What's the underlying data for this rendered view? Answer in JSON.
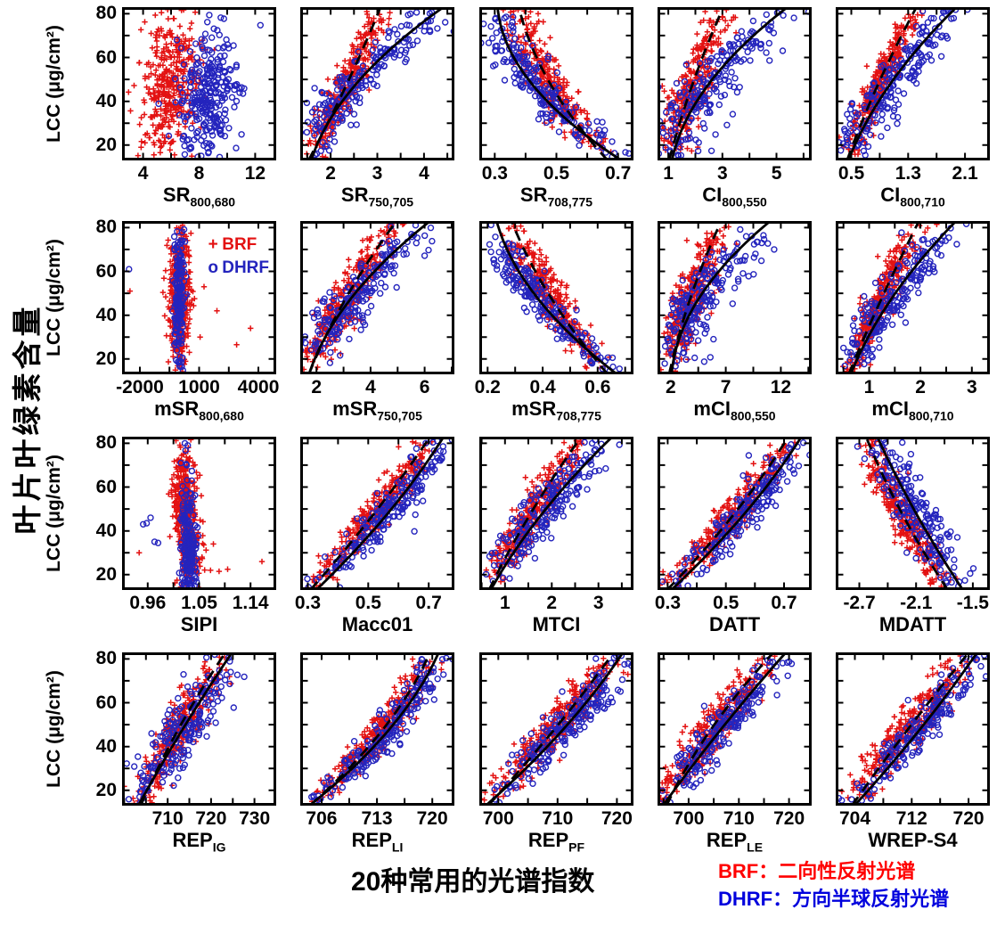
{
  "ylabel_cn": "叶片叶绿素含量",
  "caption": "20种常用的光谱指数",
  "legend_bottom": {
    "brf": "BRF：二向性反射光谱",
    "dhrf": "DHRF：方向半球反射光谱",
    "brf_color": "#ff0000",
    "dhrf_color": "#0000dd"
  },
  "series_legend": {
    "brf": {
      "marker": "+",
      "label": "BRF",
      "color": "#e31212"
    },
    "dhrf": {
      "marker": "o",
      "label": "DHRF",
      "color": "#2424bd"
    }
  },
  "chart_data": {
    "type": "scatter",
    "ylabel": "LCC (μg/cm²)",
    "ylim": [
      13,
      83
    ],
    "yticks": [
      20,
      40,
      60,
      80
    ],
    "marker_colors": {
      "brf": "#e31212",
      "dhrf": "#2424bd"
    },
    "fit_line_color": "#000000",
    "fit_styles": {
      "brf": "dashed",
      "dhrf": "solid"
    },
    "panels": [
      {
        "label_main": "SR",
        "label_sub": "800,680",
        "xlim": [
          2.5,
          13.5
        ],
        "xtick_values": [
          4,
          8,
          12
        ],
        "xtick_labels": [
          "4",
          "8",
          "12"
        ],
        "fit": false,
        "show_legend": false,
        "brf": {
          "ctrl": [
            5.2,
            5.9,
            6.1
          ],
          "jitter": 1.0,
          "n": 380
        },
        "dhrf": {
          "ctrl": [
            8.0,
            8.7,
            9.4
          ],
          "jitter": 1.1,
          "n": 280,
          "ydist": [
            40,
            17
          ]
        }
      },
      {
        "label_main": "SR",
        "label_sub": "750,705",
        "xlim": [
          1.35,
          4.65
        ],
        "xtick_values": [
          2,
          3,
          4
        ],
        "xtick_labels": [
          "2",
          "3",
          "4"
        ],
        "fit": true,
        "show_legend": false,
        "brf": {
          "ctrl": [
            1.55,
            2.35,
            3.05
          ],
          "jitter": 0.17,
          "n": 300
        },
        "dhrf": {
          "ctrl": [
            1.6,
            2.55,
            4.35
          ],
          "jitter": 0.28,
          "n": 210
        }
      },
      {
        "label_main": "SR",
        "label_sub": "708,775",
        "xlim": [
          0.25,
          0.75
        ],
        "xtick_values": [
          0.3,
          0.5,
          0.7
        ],
        "xtick_labels": [
          "0.3",
          "0.5",
          "0.7"
        ],
        "fit": true,
        "show_legend": false,
        "brf": {
          "ctrl": [
            0.66,
            0.48,
            0.38
          ],
          "jitter": 0.033,
          "n": 300
        },
        "dhrf": {
          "ctrl": [
            0.7,
            0.42,
            0.31
          ],
          "jitter": 0.035,
          "n": 210
        }
      },
      {
        "label_main": "CI",
        "label_sub": "800,550",
        "xlim": [
          0.6,
          6.3
        ],
        "xtick_values": [
          1,
          3,
          5
        ],
        "xtick_labels": [
          "1",
          "3",
          "5"
        ],
        "fit": true,
        "show_legend": false,
        "brf": {
          "ctrl": [
            1.05,
            1.9,
            3.0
          ],
          "jitter": 0.32,
          "n": 300
        },
        "dhrf": {
          "ctrl": [
            1.15,
            2.5,
            5.3
          ],
          "jitter": 0.55,
          "n": 210
        }
      },
      {
        "label_main": "CI",
        "label_sub": "800,710",
        "xlim": [
          0.28,
          2.45
        ],
        "xtick_values": [
          0.5,
          1.3,
          2.1
        ],
        "xtick_labels": [
          "0.5",
          "1.3",
          "2.1"
        ],
        "fit": true,
        "show_legend": false,
        "brf": {
          "ctrl": [
            0.45,
            0.88,
            1.4
          ],
          "jitter": 0.09,
          "n": 300
        },
        "dhrf": {
          "ctrl": [
            0.47,
            1.05,
            1.95
          ],
          "jitter": 0.16,
          "n": 210
        }
      },
      {
        "label_main": "mSR",
        "label_sub": "800,680",
        "xlim": [
          -2900,
          4900
        ],
        "xtick_values": [
          -2000,
          1000,
          4000
        ],
        "xtick_labels": [
          "-2000",
          "1000",
          "4000"
        ],
        "fit": false,
        "show_legend": true,
        "brf": {
          "ctrl": [
            -40,
            0,
            40
          ],
          "jitter": 280,
          "n": 380
        },
        "dhrf": {
          "ctrl": [
            0,
            0,
            0
          ],
          "jitter": 130,
          "n": 170
        },
        "outliers_brf": [
          [
            -2500,
            51
          ],
          [
            1900,
            42
          ],
          [
            3600,
            34
          ],
          [
            2900,
            26.5
          ],
          [
            1050,
            30
          ],
          [
            1250,
            53
          ]
        ],
        "outliers_dhrf": [
          [
            -2550,
            61
          ]
        ]
      },
      {
        "label_main": "mSR",
        "label_sub": "750,705",
        "xlim": [
          1.4,
          7.1
        ],
        "xtick_values": [
          2,
          4,
          6
        ],
        "xtick_labels": [
          "2",
          "4",
          "6"
        ],
        "fit": true,
        "show_legend": false,
        "brf": {
          "ctrl": [
            1.75,
            3.1,
            4.9
          ],
          "jitter": 0.33,
          "n": 300
        },
        "dhrf": {
          "ctrl": [
            1.75,
            3.3,
            6.1
          ],
          "jitter": 0.45,
          "n": 210
        }
      },
      {
        "label_main": "mSR",
        "label_sub": "708,775",
        "xlim": [
          0.17,
          0.73
        ],
        "xtick_values": [
          0.2,
          0.4,
          0.6
        ],
        "xtick_labels": [
          "0.2",
          "0.4",
          "0.6"
        ],
        "fit": true,
        "show_legend": false,
        "brf": {
          "ctrl": [
            0.63,
            0.43,
            0.29
          ],
          "jitter": 0.034,
          "n": 300
        },
        "dhrf": {
          "ctrl": [
            0.66,
            0.38,
            0.235
          ],
          "jitter": 0.035,
          "n": 210
        }
      },
      {
        "label_main": "mCI",
        "label_sub": "800,550",
        "xlim": [
          0.8,
          14.8
        ],
        "xtick_values": [
          2,
          7,
          12
        ],
        "xtick_labels": [
          "2",
          "7",
          "12"
        ],
        "fit": true,
        "show_legend": false,
        "brf": {
          "ctrl": [
            1.9,
            3.8,
            6.5
          ],
          "jitter": 0.75,
          "n": 300
        },
        "dhrf": {
          "ctrl": [
            2.1,
            4.6,
            10.8
          ],
          "jitter": 1.3,
          "n": 210
        }
      },
      {
        "label_main": "mCI",
        "label_sub": "800,710",
        "xlim": [
          0.35,
          3.35
        ],
        "xtick_values": [
          1,
          2,
          3
        ],
        "xtick_labels": [
          "1",
          "2",
          "3"
        ],
        "fit": true,
        "show_legend": false,
        "brf": {
          "ctrl": [
            0.62,
            1.25,
            1.95
          ],
          "jitter": 0.13,
          "n": 300
        },
        "dhrf": {
          "ctrl": [
            0.66,
            1.45,
            2.65
          ],
          "jitter": 0.22,
          "n": 210
        }
      },
      {
        "label_main": "SIPI",
        "label_sub": "",
        "xlim": [
          0.915,
          1.185
        ],
        "xtick_values": [
          0.96,
          1.05,
          1.14
        ],
        "xtick_labels": [
          "0.96",
          "1.05",
          "1.14"
        ],
        "fit": false,
        "show_legend": false,
        "brf": {
          "ctrl": [
            1.035,
            1.027,
            1.018
          ],
          "jitter": 0.011,
          "n": 400
        },
        "dhrf": {
          "ctrl": [
            1.033,
            1.03,
            1.022
          ],
          "jitter": 0.007,
          "n": 200,
          "ydist": [
            32,
            14
          ]
        },
        "outliers_brf": [
          [
            0.945,
            30
          ],
          [
            1.07,
            22
          ],
          [
            1.085,
            21.5
          ],
          [
            1.1,
            22.5
          ],
          [
            1.16,
            26
          ],
          [
            1.075,
            34
          ],
          [
            1.055,
            28
          ]
        ],
        "outliers_dhrf": [
          [
            0.952,
            43
          ],
          [
            0.958,
            43.5
          ],
          [
            0.965,
            46
          ],
          [
            0.972,
            35
          ],
          [
            0.978,
            34.5
          ],
          [
            1.025,
            80
          ],
          [
            1.03,
            79
          ],
          [
            1.018,
            71
          ],
          [
            1.027,
            70.5
          ]
        ]
      },
      {
        "label_main": "Macc01",
        "label_sub": "",
        "xlim": [
          0.275,
          0.785
        ],
        "xtick_values": [
          0.3,
          0.5,
          0.7
        ],
        "xtick_labels": [
          "0.3",
          "0.5",
          "0.7"
        ],
        "fit": true,
        "show_legend": false,
        "brf": {
          "ctrl": [
            0.315,
            0.52,
            0.7
          ],
          "jitter": 0.03,
          "n": 300
        },
        "dhrf": {
          "ctrl": [
            0.335,
            0.565,
            0.745
          ],
          "jitter": 0.035,
          "n": 210
        }
      },
      {
        "label_main": "MTCI",
        "label_sub": "",
        "xlim": [
          0.45,
          3.75
        ],
        "xtick_values": [
          1,
          2,
          3
        ],
        "xtick_labels": [
          "1",
          "2",
          "3"
        ],
        "fit": true,
        "show_legend": false,
        "brf": {
          "ctrl": [
            0.68,
            1.55,
            2.6
          ],
          "jitter": 0.19,
          "n": 300
        },
        "dhrf": {
          "ctrl": [
            0.72,
            1.8,
            3.25
          ],
          "jitter": 0.27,
          "n": 210
        }
      },
      {
        "label_main": "DATT",
        "label_sub": "",
        "xlim": [
          0.265,
          0.795
        ],
        "xtick_values": [
          0.3,
          0.5,
          0.7
        ],
        "xtick_labels": [
          "0.3",
          "0.5",
          "0.7"
        ],
        "fit": true,
        "show_legend": false,
        "brf": {
          "ctrl": [
            0.305,
            0.53,
            0.71
          ],
          "jitter": 0.03,
          "n": 300
        },
        "dhrf": {
          "ctrl": [
            0.32,
            0.565,
            0.755
          ],
          "jitter": 0.035,
          "n": 210
        }
      },
      {
        "label_main": "MDATT",
        "label_sub": "",
        "xlim": [
          -2.95,
          -1.32
        ],
        "xtick_values": [
          -2.7,
          -2.1,
          -1.5
        ],
        "xtick_labels": [
          "-2.7",
          "-2.1",
          "-1.5"
        ],
        "fit": true,
        "show_legend": false,
        "brf": {
          "ctrl": [
            -1.78,
            -2.25,
            -2.62
          ],
          "jitter": 0.085,
          "n": 300
        },
        "dhrf": {
          "ctrl": [
            -1.62,
            -2.1,
            -2.5
          ],
          "jitter": 0.13,
          "n": 210
        }
      },
      {
        "label_main": "REP",
        "label_sub": "IG",
        "xlim": [
          699.5,
          735
        ],
        "xtick_values": [
          710,
          720,
          730
        ],
        "xtick_labels": [
          "710",
          "720",
          "730"
        ],
        "fit": true,
        "show_legend": false,
        "brf": {
          "ctrl": [
            704,
            712.5,
            723
          ],
          "jitter": 2.1,
          "n": 300
        },
        "dhrf": {
          "ctrl": [
            703.5,
            713.5,
            724.5
          ],
          "jitter": 3.0,
          "n": 210
        }
      },
      {
        "label_main": "REP",
        "label_sub": "LI",
        "xlim": [
          703.3,
          722.8
        ],
        "xtick_values": [
          706,
          713,
          720
        ],
        "xtick_labels": [
          "706",
          "713",
          "720"
        ],
        "fit": true,
        "show_legend": false,
        "brf": {
          "ctrl": [
            704.8,
            713.8,
            719.6
          ],
          "jitter": 1.1,
          "n": 300
        },
        "dhrf": {
          "ctrl": [
            704.8,
            714.6,
            720.7
          ],
          "jitter": 1.2,
          "n": 210
        }
      },
      {
        "label_main": "REP",
        "label_sub": "PF",
        "xlim": [
          696.8,
          722.8
        ],
        "xtick_values": [
          700,
          710,
          720
        ],
        "xtick_labels": [
          "700",
          "710",
          "720"
        ],
        "fit": true,
        "show_legend": false,
        "brf": {
          "ctrl": [
            698.6,
            709.5,
            719.2
          ],
          "jitter": 1.7,
          "n": 300
        },
        "dhrf": {
          "ctrl": [
            698.3,
            711,
            720.8
          ],
          "jitter": 1.8,
          "n": 210
        }
      },
      {
        "label_main": "REP",
        "label_sub": "LE",
        "xlim": [
          693.8,
          724.5
        ],
        "xtick_values": [
          700,
          710,
          720
        ],
        "xtick_labels": [
          "700",
          "710",
          "720"
        ],
        "fit": true,
        "show_legend": false,
        "brf": {
          "ctrl": [
            695.8,
            704.5,
            716.5
          ],
          "jitter": 2.0,
          "n": 300
        },
        "dhrf": {
          "ctrl": [
            695.2,
            706.5,
            719
          ],
          "jitter": 2.2,
          "n": 210
        }
      },
      {
        "label_main": "WREP-S4",
        "label_sub": "",
        "xlim": [
          701.3,
          723
        ],
        "xtick_values": [
          704,
          712,
          720
        ],
        "xtick_labels": [
          "704",
          "712",
          "720"
        ],
        "fit": true,
        "show_legend": false,
        "brf": {
          "ctrl": [
            703.8,
            711.5,
            719.8
          ],
          "jitter": 1.5,
          "n": 300
        },
        "dhrf": {
          "ctrl": [
            704.2,
            713.2,
            721
          ],
          "jitter": 1.6,
          "n": 210
        }
      }
    ]
  }
}
